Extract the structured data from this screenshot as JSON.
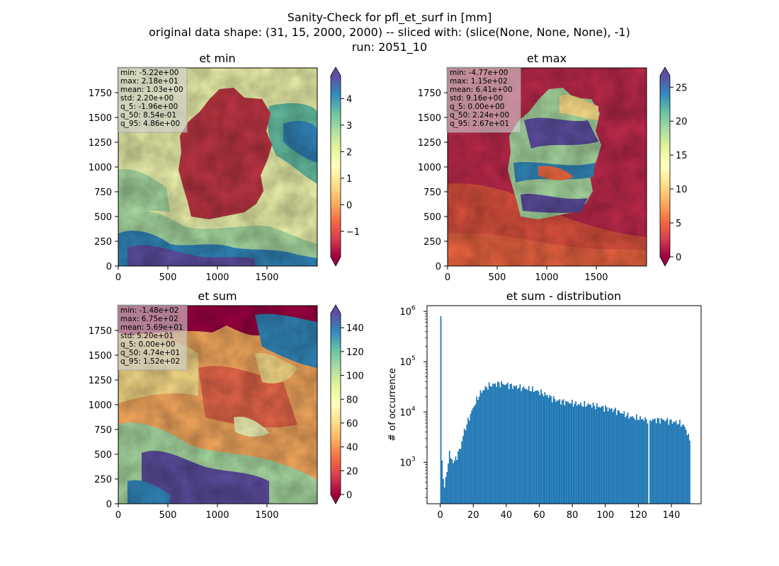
{
  "figure": {
    "title_lines": [
      "Sanity-Check for pfl_et_surf in [mm]",
      "original data shape: (31, 15, 2000, 2000) -- sliced with: (slice(None, None, None), -1)",
      "run: 2051_10"
    ]
  },
  "chart_data": [
    {
      "type": "heatmap",
      "title": "et min",
      "xlim": [
        0,
        2000
      ],
      "ylim": [
        0,
        2000
      ],
      "xticks": [
        0,
        500,
        1000,
        1500
      ],
      "yticks": [
        0,
        250,
        500,
        750,
        1000,
        1250,
        1500,
        1750
      ],
      "colormap": "Spectral",
      "colorbar": {
        "range": [
          -1.96,
          4.86
        ],
        "ticks": [
          -1,
          0,
          1,
          2,
          3,
          4
        ],
        "tick_labels": [
          "−1",
          "0",
          "1",
          "2",
          "3",
          "4"
        ],
        "extend": "both"
      },
      "stats": [
        "min: -5.22e+00",
        "max: 2.18e+01",
        "mean: 1.03e+00",
        "std: 2.20e+00",
        "q_5: -1.96e+00",
        "q_50: 8.54e-01",
        "q_95: 4.86e+00"
      ]
    },
    {
      "type": "heatmap",
      "title": "et max",
      "xlim": [
        0,
        2000
      ],
      "ylim": [
        0,
        2000
      ],
      "xticks": [
        0,
        500,
        1000,
        1500
      ],
      "yticks": [
        0,
        250,
        500,
        750,
        1000,
        1250,
        1500,
        1750
      ],
      "colormap": "Spectral",
      "colorbar": {
        "range": [
          0,
          26.7
        ],
        "ticks": [
          0,
          5,
          10,
          15,
          20,
          25
        ],
        "tick_labels": [
          "0",
          "5",
          "10",
          "15",
          "20",
          "25"
        ],
        "extend": "both"
      },
      "stats": [
        "min: -4.77e+00",
        "max: 1.15e+02",
        "mean: 6.41e+00",
        "std: 9.16e+00",
        "q_5: 0.00e+00",
        "q_50: 2.24e+00",
        "q_95: 2.67e+01"
      ]
    },
    {
      "type": "heatmap",
      "title": "et sum",
      "xlim": [
        0,
        2000
      ],
      "ylim": [
        0,
        2000
      ],
      "xticks": [
        0,
        500,
        1000,
        1500
      ],
      "yticks": [
        0,
        250,
        500,
        750,
        1000,
        1250,
        1500,
        1750
      ],
      "colormap": "Spectral",
      "colorbar": {
        "range": [
          0,
          152
        ],
        "ticks": [
          0,
          20,
          40,
          60,
          80,
          100,
          120,
          140
        ],
        "tick_labels": [
          "0",
          "20",
          "40",
          "60",
          "80",
          "100",
          "120",
          "140"
        ],
        "extend": "both"
      },
      "stats": [
        "min: -1.48e+02",
        "max: 6.75e+02",
        "mean: 5.69e+01",
        "std: 5.20e+01",
        "q_5: 0.00e+00",
        "q_50: 4.74e+01",
        "q_95: 1.52e+02"
      ]
    },
    {
      "type": "bar",
      "title": "et sum - distribution",
      "ylabel": "# of occurrence",
      "yscale": "log",
      "xlim": [
        -8,
        158
      ],
      "ylim": [
        150,
        1300000
      ],
      "xticks": [
        0,
        20,
        40,
        60,
        80,
        100,
        120,
        140
      ],
      "ytick_exponents": [
        3,
        4,
        5,
        6
      ],
      "bar_color": "#1f77b4",
      "bin_width": 0.75,
      "anchors": [
        [
          0,
          800000
        ],
        [
          0.8,
          700
        ],
        [
          2,
          350
        ],
        [
          3,
          450
        ],
        [
          4,
          700
        ],
        [
          5,
          1700
        ],
        [
          6,
          1200
        ],
        [
          7,
          1100
        ],
        [
          8,
          1000
        ],
        [
          10,
          1400
        ],
        [
          12,
          2000
        ],
        [
          14,
          4000
        ],
        [
          16,
          6000
        ],
        [
          18,
          9000
        ],
        [
          20,
          13000
        ],
        [
          22,
          18000
        ],
        [
          24,
          24000
        ],
        [
          26,
          28000
        ],
        [
          28,
          32000
        ],
        [
          30,
          34000
        ],
        [
          33,
          36000
        ],
        [
          36,
          37000
        ],
        [
          40,
          35000
        ],
        [
          45,
          32000
        ],
        [
          50,
          30000
        ],
        [
          55,
          28000
        ],
        [
          60,
          25000
        ],
        [
          65,
          21000
        ],
        [
          70,
          17000
        ],
        [
          75,
          16000
        ],
        [
          80,
          15000
        ],
        [
          85,
          14000
        ],
        [
          90,
          14000
        ],
        [
          95,
          13000
        ],
        [
          100,
          12000
        ],
        [
          105,
          11000
        ],
        [
          110,
          9500
        ],
        [
          115,
          8000
        ],
        [
          120,
          7500
        ],
        [
          125,
          7000
        ],
        [
          126,
          7000
        ],
        [
          130,
          7000
        ],
        [
          135,
          7000
        ],
        [
          140,
          6500
        ],
        [
          145,
          6000
        ],
        [
          148,
          5000
        ],
        [
          150,
          3200
        ],
        [
          151,
          2800
        ]
      ],
      "gaps": [
        [
          125.5,
          126.5
        ]
      ]
    }
  ]
}
